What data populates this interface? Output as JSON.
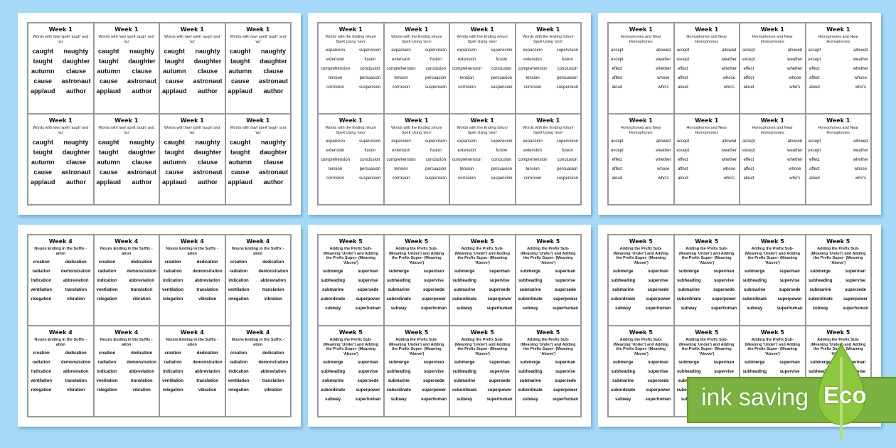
{
  "sheets": [
    {
      "title": "Week 1",
      "subtitle": "Words with /aw/ spelt 'augh' and 'au'",
      "words": [
        "caught",
        "naughty",
        "taught",
        "daughter",
        "autumn",
        "clause",
        "cause",
        "astronaut",
        "applaud",
        "author"
      ]
    },
    {
      "title": "Week 1",
      "subtitle": "Words with the Ending /shun/ Spelt Using 'sion'",
      "words": [
        "expansion",
        "supervision",
        "extension",
        "fusion",
        "comprehension",
        "conclusion",
        "tension",
        "persuasion",
        "corrosion",
        "suspension"
      ]
    },
    {
      "title": "Week 1",
      "subtitle": "Homophones and Near Homophones",
      "words": [
        "accept",
        "allowed",
        "except",
        "weather",
        "effect",
        "whether",
        "affect",
        "whose",
        "aloud",
        "who's"
      ]
    },
    {
      "title": "Week 4",
      "subtitle": "Nouns Ending in the Suffix -ation",
      "words": [
        "creation",
        "dedication",
        "radiation",
        "demonstration",
        "indication",
        "abbreviation",
        "ventilation",
        "translation",
        "relegation",
        "vibration"
      ]
    },
    {
      "title": "Week 5",
      "subtitle": "Adding the Prefix Sub- (Meaning 'Under') and Adding the Prefix Super- (Meaning 'Above')",
      "words": [
        "submerge",
        "superman",
        "subheading",
        "supervise",
        "submarine",
        "supersede",
        "subordinate",
        "superpower",
        "subway",
        "superhuman"
      ]
    },
    {
      "title": "Week 5",
      "subtitle": "Adding the Prefix Sub- (Meaning 'Under') and Adding the Prefix Super- (Meaning 'Above')",
      "words": [
        "submerge",
        "superman",
        "subheading",
        "supervise",
        "submarine",
        "supersede",
        "subordinate",
        "superpower",
        "subway",
        "superhuman"
      ]
    }
  ],
  "badge": {
    "label": "ink saving",
    "eco": "Eco",
    "color": "#7bb241",
    "background": "#a6d9f7"
  }
}
